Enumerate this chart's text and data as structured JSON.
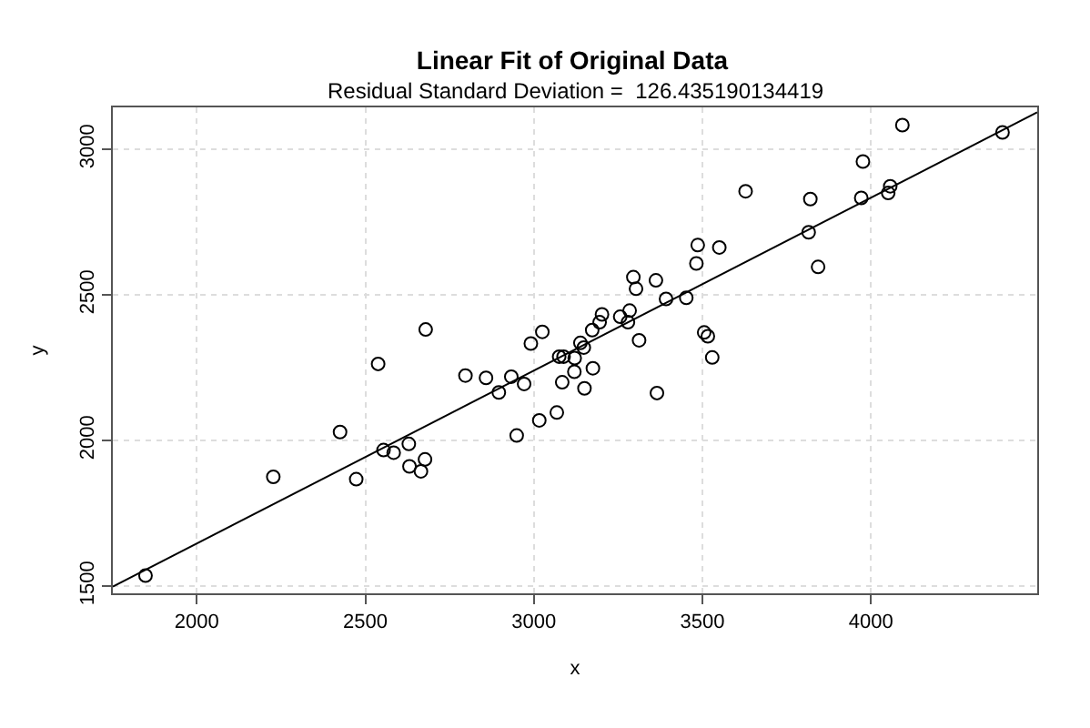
{
  "chart_data": {
    "type": "scatter",
    "title": "Linear Fit of Original Data",
    "subtitle": "Residual Standard Deviation =  126.435190134419",
    "xlabel": "x",
    "ylabel": "y",
    "xlim": [
      1751,
      4493
    ],
    "ylim": [
      1475,
      3144
    ],
    "xticks": [
      2000,
      2500,
      3000,
      3500,
      4000
    ],
    "yticks": [
      1500,
      2000,
      2500,
      3000
    ],
    "grid": true,
    "marker": "circle",
    "series": [
      {
        "color": "#000000",
        "x": [
          1848,
          2227,
          2425,
          2473,
          2538,
          2554,
          2584,
          2629,
          2631,
          2665,
          2677,
          2679,
          2797,
          2858,
          2896,
          2933,
          2949,
          2971,
          2991,
          3016,
          3025,
          3068,
          3075,
          3088,
          3084,
          3121,
          3120,
          3138,
          3150,
          3148,
          3175,
          3173,
          3195,
          3202,
          3256,
          3279,
          3284,
          3295,
          3303,
          3312,
          3362,
          3365,
          3392,
          3452,
          3482,
          3486,
          3505,
          3516,
          3529,
          3550,
          3628,
          3815,
          3820,
          3843,
          3971,
          3976,
          4051,
          4057,
          4093,
          4390
        ],
        "values": [
          1536,
          1875,
          2029,
          1867,
          2263,
          1967,
          1958,
          1988,
          1911,
          1894,
          1935,
          2381,
          2223,
          2215,
          2165,
          2219,
          2017,
          2194,
          2333,
          2069,
          2373,
          2096,
          2288,
          2288,
          2200,
          2283,
          2236,
          2335,
          2179,
          2319,
          2248,
          2379,
          2406,
          2433,
          2425,
          2406,
          2446,
          2561,
          2521,
          2344,
          2550,
          2163,
          2486,
          2490,
          2608,
          2671,
          2371,
          2358,
          2285,
          2663,
          2856,
          2715,
          2829,
          2596,
          2833,
          2958,
          2850,
          2873,
          3083,
          3058
        ]
      },
      {
        "type": "line",
        "color": "#000000",
        "marker": "none",
        "x": [
          1751,
          4493
        ],
        "values": [
          1498,
          3127
        ]
      }
    ]
  }
}
